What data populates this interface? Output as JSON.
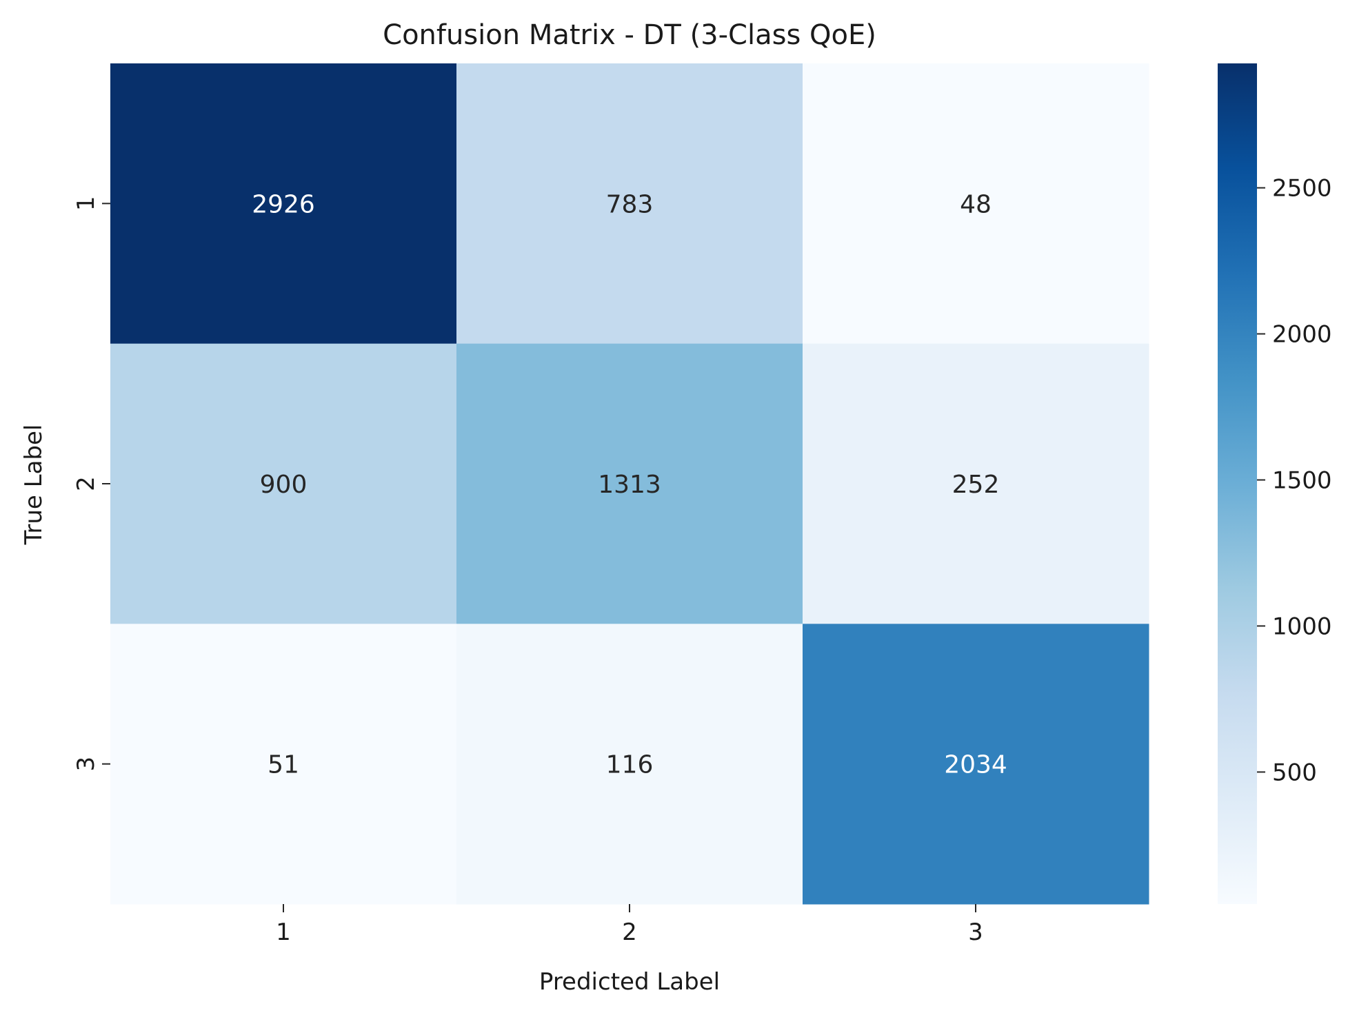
{
  "chart_data": {
    "type": "heatmap",
    "title": "Confusion Matrix - DT (3-Class QoE)",
    "xlabel": "Predicted Label",
    "ylabel": "True Label",
    "x_categories": [
      "1",
      "2",
      "3"
    ],
    "y_categories": [
      "1",
      "2",
      "3"
    ],
    "values": [
      [
        2926,
        783,
        48
      ],
      [
        900,
        1313,
        252
      ],
      [
        51,
        116,
        2034
      ]
    ],
    "colorscale": {
      "name": "Blues",
      "min": 48,
      "max": 2926,
      "ticks": [
        500,
        1000,
        1500,
        2000,
        2500
      ],
      "stops": [
        "#f7fbff",
        "#deebf7",
        "#c6dbef",
        "#9ecae1",
        "#6baed6",
        "#4292c6",
        "#2171b5",
        "#08519c",
        "#08306b"
      ]
    },
    "annotation_colors": {
      "light_text": "#ffffff",
      "dark_text": "#262626"
    },
    "grid": false,
    "legend": "colorbar-right"
  }
}
